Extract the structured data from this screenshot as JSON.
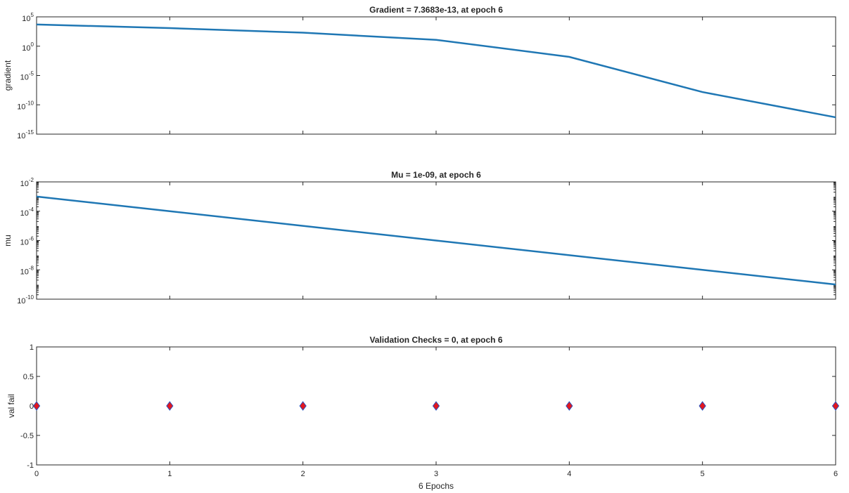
{
  "chart_data": [
    {
      "type": "line",
      "title": "Gradient = 7.3683e-13, at epoch 6",
      "xlabel": "",
      "ylabel": "gradient",
      "yscale": "log",
      "xlim": [
        0,
        6
      ],
      "ylim": [
        1e-15,
        100000.0
      ],
      "yticks": [
        1e-15,
        1e-10,
        1e-05,
        1,
        100000.0
      ],
      "ytick_labels": [
        {
          "base": "10",
          "exp": "-15"
        },
        {
          "base": "10",
          "exp": "-10"
        },
        {
          "base": "10",
          "exp": "-5"
        },
        {
          "base": "10",
          "exp": "0"
        },
        {
          "base": "10",
          "exp": "5"
        }
      ],
      "x": [
        0,
        1,
        2,
        3,
        4,
        5,
        6
      ],
      "series": [
        {
          "values": [
            5000,
            1200,
            200,
            12,
            0.015,
            1.5e-08,
            7.3683e-13
          ],
          "color": "#1f77b4"
        }
      ],
      "grid": false
    },
    {
      "type": "line",
      "title": "Mu = 1e-09, at epoch 6",
      "xlabel": "",
      "ylabel": "mu",
      "yscale": "log",
      "xlim": [
        0,
        6
      ],
      "ylim": [
        1e-10,
        0.01
      ],
      "yticks": [
        1e-10,
        1e-08,
        1e-06,
        0.0001,
        0.01
      ],
      "ytick_labels": [
        {
          "base": "10",
          "exp": "-10"
        },
        {
          "base": "10",
          "exp": "-8"
        },
        {
          "base": "10",
          "exp": "-6"
        },
        {
          "base": "10",
          "exp": "-4"
        },
        {
          "base": "10",
          "exp": "-2"
        }
      ],
      "x": [
        0,
        1,
        2,
        3,
        4,
        5,
        6
      ],
      "series": [
        {
          "values": [
            0.001,
            0.0001,
            1e-05,
            1e-06,
            1e-07,
            1e-08,
            1e-09
          ],
          "color": "#1f77b4"
        }
      ],
      "grid": false
    },
    {
      "type": "scatter",
      "title": "Validation Checks = 0, at epoch 6",
      "xlabel": "6 Epochs",
      "ylabel": "val fail",
      "yscale": "linear",
      "xlim": [
        0,
        6
      ],
      "ylim": [
        -1,
        1
      ],
      "yticks": [
        -1,
        -0.5,
        0,
        0.5,
        1
      ],
      "ytick_labels": [
        {
          "base": "-1",
          "exp": ""
        },
        {
          "base": "-0.5",
          "exp": ""
        },
        {
          "base": "0",
          "exp": ""
        },
        {
          "base": "0.5",
          "exp": ""
        },
        {
          "base": "1",
          "exp": ""
        }
      ],
      "xticks": [
        0,
        1,
        2,
        3,
        4,
        5,
        6
      ],
      "xtick_labels": [
        "0",
        "1",
        "2",
        "3",
        "4",
        "5",
        "6"
      ],
      "x": [
        0,
        1,
        2,
        3,
        4,
        5,
        6
      ],
      "series": [
        {
          "values": [
            0,
            0,
            0,
            0,
            0,
            0,
            0
          ],
          "color": "#e3171f",
          "edge_color": "#2a52be",
          "marker": "diamond"
        }
      ],
      "grid": false
    }
  ]
}
